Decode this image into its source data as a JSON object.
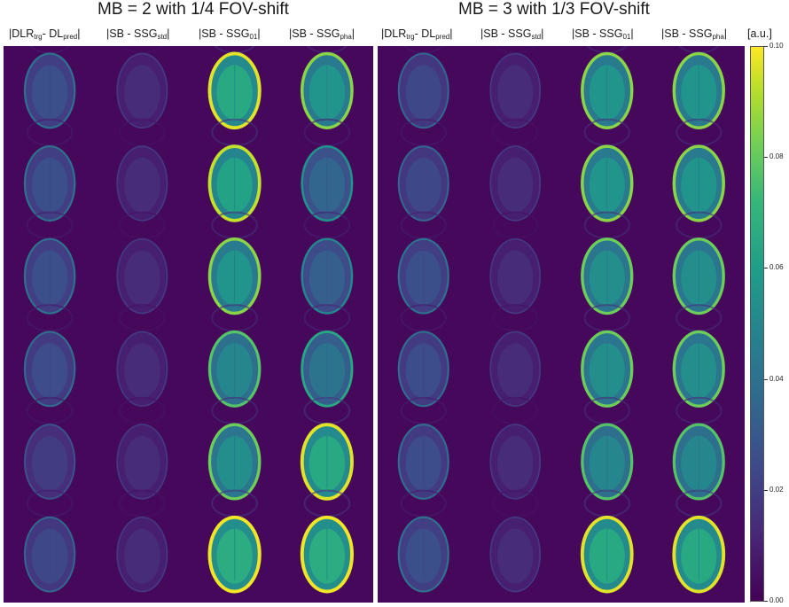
{
  "panels": [
    {
      "title": "MB = 2 with 1/4 FOV-shift",
      "columns": [
        {
          "pre": "|DLR",
          "sub1": "trg",
          "mid": "- DL",
          "sub2": "pred",
          "post": "|"
        },
        {
          "pre": "|SB - SSG",
          "sub1": "std",
          "mid": "",
          "sub2": "",
          "post": "|"
        },
        {
          "pre": "|SB - SSG",
          "sub1": "01",
          "mid": "",
          "sub2": "",
          "post": "|"
        },
        {
          "pre": "|SB - SSG",
          "sub1": "pha",
          "mid": "",
          "sub2": "",
          "post": "|"
        }
      ]
    },
    {
      "title": "MB = 3 with 1/3 FOV-shift",
      "columns": [
        {
          "pre": "|DLR",
          "sub1": "trg",
          "mid": "- DL",
          "sub2": "pred",
          "post": "|"
        },
        {
          "pre": "|SB - SSG",
          "sub1": "std",
          "mid": "",
          "sub2": "",
          "post": "|"
        },
        {
          "pre": "|SB - SSG",
          "sub1": "01",
          "mid": "",
          "sub2": "",
          "post": "|"
        },
        {
          "pre": "|SB - SSG",
          "sub1": "pha",
          "mid": "",
          "sub2": "",
          "post": "|"
        }
      ]
    }
  ],
  "colorbar": {
    "unit": "[a.u.]",
    "ticks": [
      "0.10",
      "0.08",
      "0.06",
      "0.04",
      "0.02",
      "0.00"
    ],
    "colormap": "viridis",
    "colors": {
      "low": "#440154",
      "high": "#fde725"
    }
  },
  "intensity": {
    "left": [
      [
        0.3,
        0.08,
        0.95,
        0.8
      ],
      [
        0.3,
        0.08,
        0.9,
        0.45
      ],
      [
        0.3,
        0.08,
        0.8,
        0.4
      ],
      [
        0.28,
        0.08,
        0.7,
        0.55
      ],
      [
        0.18,
        0.08,
        0.75,
        0.95
      ],
      [
        0.25,
        0.08,
        0.98,
        0.98
      ]
    ],
    "right": [
      [
        0.25,
        0.08,
        0.8,
        0.8
      ],
      [
        0.25,
        0.08,
        0.8,
        0.8
      ],
      [
        0.3,
        0.08,
        0.75,
        0.75
      ],
      [
        0.28,
        0.08,
        0.75,
        0.75
      ],
      [
        0.28,
        0.08,
        0.7,
        0.7
      ],
      [
        0.3,
        0.08,
        0.95,
        0.95
      ]
    ]
  }
}
